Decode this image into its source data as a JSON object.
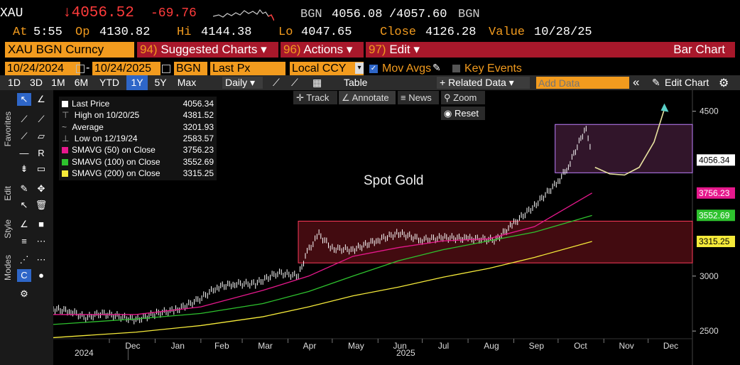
{
  "header": {
    "ticker": "XAU",
    "last": "↓4056.52",
    "change": "-69.76",
    "source": "BGN",
    "bid": "4056.08",
    "ask": "4057.60",
    "source2": "BGN",
    "at_label": "At",
    "at_value": "5:55",
    "op_label": "Op",
    "op_value": "4130.82",
    "hi_label": "Hi",
    "hi_value": "4144.38",
    "lo_label": "Lo",
    "lo_value": "4047.65",
    "close_label": "Close",
    "close_value": "4126.28",
    "value_label": "Value",
    "value_value": "10/28/25"
  },
  "menu": {
    "security": "XAU BGN Curncy",
    "suggested_num": "94)",
    "suggested": "Suggested Charts ▾",
    "actions_num": "96)",
    "actions": "Actions ▾",
    "edit_num": "97)",
    "edit": "Edit ▾",
    "title": "Bar Chart"
  },
  "settings": {
    "start_date": "10/24/2024",
    "dash": "-",
    "end_date": "10/24/2025",
    "source": "BGN",
    "field": "Last Px",
    "currency": "Local CCY",
    "mov_avgs": "Mov Avgs",
    "key_events": "Key Events"
  },
  "toolbar": {
    "periods": [
      "1D",
      "3D",
      "1M",
      "6M",
      "YTD",
      "1Y",
      "5Y",
      "Max"
    ],
    "selected_period": "1Y",
    "frequency": "Daily ▾",
    "table": "Table",
    "related": "+ Related Data ▾",
    "add_placeholder": "Add Data",
    "collapse": "«",
    "edit_chart": "Edit Chart",
    "gear": "⚙"
  },
  "left_toolbar": {
    "tabs": [
      "Favorites",
      "Edit",
      "Style",
      "Modes"
    ]
  },
  "chart_tools": {
    "track": "Track",
    "annotate": "Annotate",
    "news": "News",
    "zoom": "Zoom",
    "reset": "Reset"
  },
  "legend": [
    {
      "label": "Last Price",
      "value": "4056.34",
      "color": "#ffffff"
    },
    {
      "label": "High on 10/20/25",
      "value": "4381.52",
      "color": ""
    },
    {
      "label": "Average",
      "value": "3201.93",
      "color": ""
    },
    {
      "label": "Low on 12/19/24",
      "value": "2583.57",
      "color": ""
    },
    {
      "label": "SMAVG (50)  on Close",
      "value": "3756.23",
      "color": "#e6188c"
    },
    {
      "label": "SMAVG (100)  on Close",
      "value": "3552.69",
      "color": "#2ec22e"
    },
    {
      "label": "SMAVG (200)  on Close",
      "value": "3315.25",
      "color": "#f5ea3a"
    }
  ],
  "chart_data": {
    "type": "line",
    "title": "Spot Gold",
    "y_ticks": [
      2500,
      3000,
      4500
    ],
    "ylim": [
      2430,
      4640
    ],
    "months": [
      "Dec",
      "Jan",
      "Feb",
      "Mar",
      "Apr",
      "May",
      "Jun",
      "Jul",
      "Aug",
      "Sep",
      "Oct",
      "Nov",
      "Dec"
    ],
    "years": [
      "2024",
      "2025"
    ],
    "price_tags": [
      {
        "value": 4056.34,
        "label": "4056.34",
        "bg": "#ffffff",
        "fg": "#000000"
      },
      {
        "value": 3756.23,
        "label": "3756.23",
        "bg": "#e6188c",
        "fg": "#ffffff"
      },
      {
        "value": 3552.69,
        "label": "3552.69",
        "bg": "#2ec22e",
        "fg": "#ffffff"
      },
      {
        "value": 3315.25,
        "label": "3315.25",
        "bg": "#f5ea3a",
        "fg": "#000000"
      }
    ],
    "series": [
      {
        "name": "Last Price",
        "color": "#ffffff",
        "x": [
          "2024-10-24",
          "2024-11-05",
          "2024-11-15",
          "2024-11-25",
          "2024-12-05",
          "2024-12-19",
          "2025-01-02",
          "2025-01-15",
          "2025-01-30",
          "2025-02-12",
          "2025-02-24",
          "2025-03-10",
          "2025-03-25",
          "2025-04-08",
          "2025-04-14",
          "2025-04-22",
          "2025-05-01",
          "2025-05-15",
          "2025-06-01",
          "2025-06-15",
          "2025-07-01",
          "2025-07-15",
          "2025-08-01",
          "2025-08-20",
          "2025-09-01",
          "2025-09-15",
          "2025-10-01",
          "2025-10-08",
          "2025-10-20",
          "2025-10-24"
        ],
        "y": [
          2700,
          2680,
          2620,
          2660,
          2640,
          2600,
          2660,
          2690,
          2780,
          2900,
          2930,
          2930,
          3030,
          3000,
          3220,
          3380,
          3250,
          3240,
          3330,
          3390,
          3330,
          3350,
          3340,
          3330,
          3480,
          3640,
          3860,
          4000,
          4360,
          4056
        ]
      },
      {
        "name": "SMAVG (50)",
        "color": "#e6188c",
        "x": [
          "2024-10-24",
          "2024-12-19",
          "2025-02-01",
          "2025-03-15",
          "2025-04-15",
          "2025-05-15",
          "2025-06-15",
          "2025-07-15",
          "2025-08-15",
          "2025-09-15",
          "2025-10-24"
        ],
        "y": [
          2650,
          2650,
          2720,
          2870,
          3000,
          3180,
          3260,
          3320,
          3340,
          3450,
          3756
        ]
      },
      {
        "name": "SMAVG (100)",
        "color": "#2ec22e",
        "x": [
          "2024-10-24",
          "2024-12-19",
          "2025-02-01",
          "2025-03-15",
          "2025-04-15",
          "2025-05-15",
          "2025-06-15",
          "2025-07-15",
          "2025-08-15",
          "2025-09-15",
          "2025-10-24"
        ],
        "y": [
          2560,
          2610,
          2660,
          2750,
          2860,
          3000,
          3140,
          3240,
          3320,
          3400,
          3552
        ]
      },
      {
        "name": "SMAVG (200)",
        "color": "#f5ea3a",
        "x": [
          "2024-10-24",
          "2024-12-19",
          "2025-02-01",
          "2025-03-15",
          "2025-04-15",
          "2025-05-15",
          "2025-06-15",
          "2025-07-15",
          "2025-08-15",
          "2025-09-15",
          "2025-10-24"
        ],
        "y": [
          2440,
          2490,
          2550,
          2630,
          2720,
          2820,
          2900,
          2990,
          3070,
          3170,
          3315
        ]
      },
      {
        "name": "Projection",
        "color": "#e8e2a0",
        "x": [
          "2025-10-26",
          "2025-11-05",
          "2025-11-15",
          "2025-11-25",
          "2025-12-05",
          "2025-12-12"
        ],
        "y": [
          3990,
          3930,
          3920,
          3990,
          4220,
          4520
        ]
      }
    ],
    "boxes": [
      {
        "x0": "2025-04-08",
        "x1": "2025-12-31",
        "y0": 3120,
        "y1": 3500,
        "color": "#ff3b5c"
      },
      {
        "x0": "2025-09-29",
        "x1": "2025-12-31",
        "y0": 3940,
        "y1": 4380,
        "color": "#c080ff"
      }
    ],
    "x_range": [
      "2024-10-24",
      "2025-12-31"
    ]
  }
}
